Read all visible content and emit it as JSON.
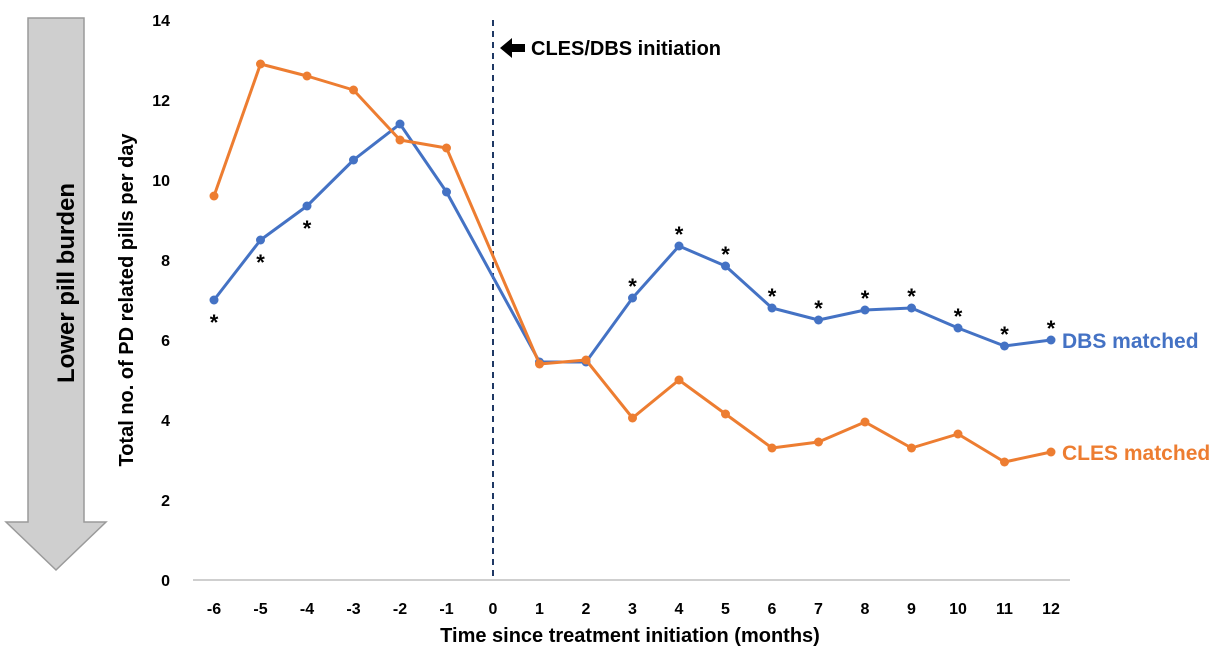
{
  "chart_data": {
    "type": "line",
    "xlabel": "Time since treatment initiation (months)",
    "ylabel": "Total no. of PD related pills per day",
    "x": [
      -6,
      -5,
      -4,
      -3,
      -2,
      -1,
      0,
      1,
      2,
      3,
      4,
      5,
      6,
      7,
      8,
      9,
      10,
      11,
      12
    ],
    "xlim": [
      -6,
      12
    ],
    "ylim": [
      0,
      14
    ],
    "yticks": [
      0,
      2,
      4,
      6,
      8,
      10,
      12,
      14
    ],
    "grid": false,
    "series": [
      {
        "name": "DBS matched",
        "color": "#4472C4",
        "values": [
          7.0,
          8.5,
          9.35,
          10.5,
          11.4,
          9.7,
          null,
          5.45,
          5.45,
          7.05,
          8.35,
          7.85,
          6.8,
          6.5,
          6.75,
          6.8,
          6.3,
          5.85,
          6.0
        ],
        "asterisks": [
          -6,
          -5,
          -4,
          3,
          4,
          5,
          6,
          7,
          8,
          9,
          10,
          11,
          12
        ]
      },
      {
        "name": "CLES matched",
        "color": "#ED7D31",
        "values": [
          9.6,
          12.9,
          12.6,
          12.25,
          11.0,
          10.8,
          null,
          5.4,
          5.5,
          4.05,
          5.0,
          4.15,
          3.3,
          3.45,
          3.95,
          3.3,
          3.65,
          2.95,
          3.2
        ]
      }
    ],
    "significance_marker": "*",
    "vline": {
      "x": 0,
      "style": "dashed",
      "color": "#1F3864"
    },
    "annotation": "CLES/DBS initiation",
    "side_label": "Lower pill burden"
  }
}
